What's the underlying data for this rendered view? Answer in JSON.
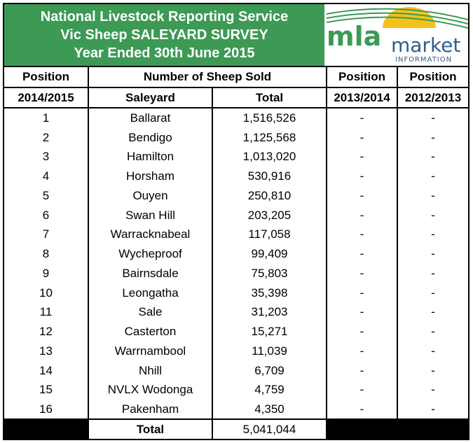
{
  "banner": {
    "line1": "National Livestock Reporting Service",
    "line2": "Vic Sheep SALEYARD SURVEY",
    "line3": "Year Ended 30th June 2015"
  },
  "logo": {
    "brand": "mla",
    "word": "market",
    "sub": "INFORMATION",
    "brand_color": "#3c9a55",
    "sun_color": "#f2c21b"
  },
  "header": {
    "position": "Position",
    "sold": "Number of Sheep Sold",
    "position2": "Position",
    "position3": "Position",
    "year_current": "2014/2015",
    "saleyard": "Saleyard",
    "total": "Total",
    "year_prev1": "2013/2014",
    "year_prev2": "2012/2013"
  },
  "rows": [
    {
      "pos": "1",
      "name": "Ballarat",
      "total": "1,516,526",
      "p1": "-",
      "p2": "-"
    },
    {
      "pos": "2",
      "name": "Bendigo",
      "total": "1,125,568",
      "p1": "-",
      "p2": "-"
    },
    {
      "pos": "3",
      "name": "Hamilton",
      "total": "1,013,020",
      "p1": "-",
      "p2": "-"
    },
    {
      "pos": "4",
      "name": "Horsham",
      "total": "530,916",
      "p1": "-",
      "p2": "-"
    },
    {
      "pos": "5",
      "name": "Ouyen",
      "total": "250,810",
      "p1": "-",
      "p2": "-"
    },
    {
      "pos": "6",
      "name": "Swan Hill",
      "total": "203,205",
      "p1": "-",
      "p2": "-"
    },
    {
      "pos": "7",
      "name": "Warracknabeal",
      "total": "117,058",
      "p1": "-",
      "p2": "-"
    },
    {
      "pos": "8",
      "name": "Wycheproof",
      "total": "99,409",
      "p1": "-",
      "p2": "-"
    },
    {
      "pos": "9",
      "name": "Bairnsdale",
      "total": "75,803",
      "p1": "-",
      "p2": "-"
    },
    {
      "pos": "10",
      "name": "Leongatha",
      "total": "35,398",
      "p1": "-",
      "p2": "-"
    },
    {
      "pos": "11",
      "name": "Sale",
      "total": "31,203",
      "p1": "-",
      "p2": "-"
    },
    {
      "pos": "12",
      "name": "Casterton",
      "total": "15,271",
      "p1": "-",
      "p2": "-"
    },
    {
      "pos": "13",
      "name": "Warrnambool",
      "total": "11,039",
      "p1": "-",
      "p2": "-"
    },
    {
      "pos": "14",
      "name": "Nhill",
      "total": "6,709",
      "p1": "-",
      "p2": "-"
    },
    {
      "pos": "15",
      "name": "NVLX Wodonga",
      "total": "4,759",
      "p1": "-",
      "p2": "-"
    },
    {
      "pos": "16",
      "name": "Pakenham",
      "total": "4,350",
      "p1": "-",
      "p2": "-"
    }
  ],
  "footer": {
    "label": "Total",
    "value": "5,041,044"
  }
}
